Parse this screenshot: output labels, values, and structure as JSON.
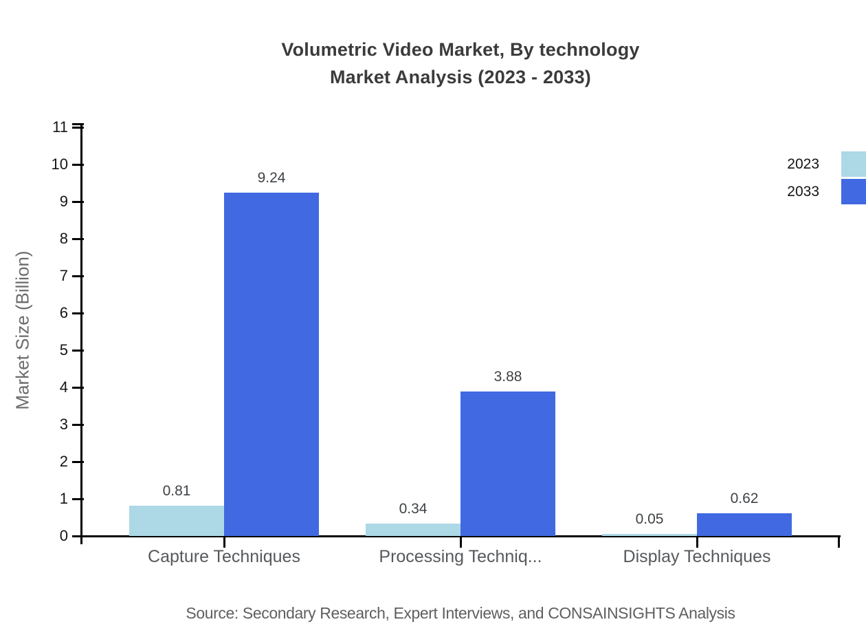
{
  "chart": {
    "title_line1": "Volumetric Video Market, By technology",
    "title_line2": "Market Analysis (2023 - 2033)",
    "ylabel": "Market Size (Billion)",
    "source": "Source: Secondary Research, Expert Interviews, and CONSAINSIGHTS Analysis"
  },
  "chart_data": {
    "type": "bar",
    "title": "Volumetric Video Market, By technology Market Analysis (2023 - 2033)",
    "categories": [
      "Capture Techniques",
      "Processing Techniq...",
      "Display Techniques"
    ],
    "series": [
      {
        "name": "2023",
        "color": "#ADD8E6",
        "values": [
          0.81,
          0.34,
          0.05
        ]
      },
      {
        "name": "2033",
        "color": "#4169E1",
        "values": [
          9.24,
          3.88,
          0.62
        ]
      }
    ],
    "value_labels": [
      [
        "0.81",
        "0.34",
        "0.05"
      ],
      [
        "9.24",
        "3.88",
        "0.62"
      ]
    ],
    "xlabel": "",
    "ylabel": "Market Size (Billion)",
    "ylim": [
      0,
      11
    ],
    "yticks": [
      0,
      1,
      2,
      3,
      4,
      5,
      6,
      7,
      8,
      9,
      10,
      11
    ],
    "grid": false,
    "legend_position": "top-right",
    "axis_color": "#000000",
    "title_color": "#3b3b3b",
    "label_color": "#56595c"
  }
}
